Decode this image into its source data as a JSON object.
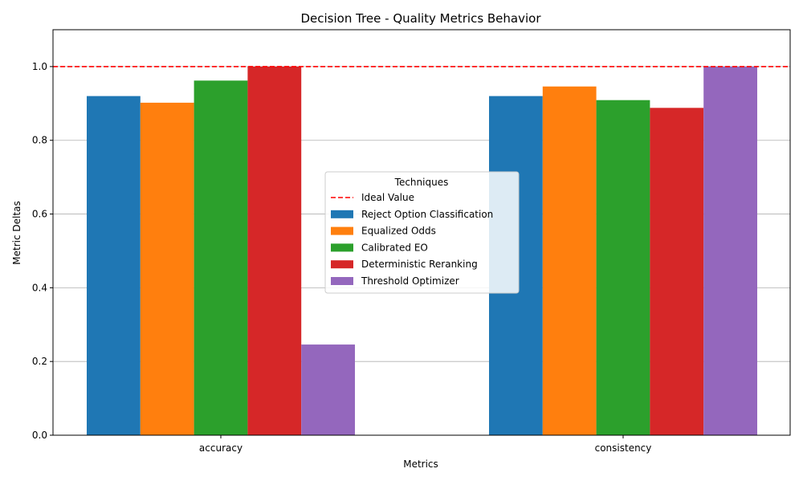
{
  "chart_data": {
    "type": "bar",
    "title": "Decision Tree - Quality Metrics Behavior",
    "xlabel": "Metrics",
    "ylabel": "Metric Deltas",
    "categories": [
      "accuracy",
      "consistency"
    ],
    "series": [
      {
        "name": "Reject Option Classification",
        "color": "#1f77b4",
        "values": [
          0.92,
          0.92
        ]
      },
      {
        "name": "Equalized Odds",
        "color": "#ff7f0e",
        "values": [
          0.902,
          0.946
        ]
      },
      {
        "name": "Calibrated EO",
        "color": "#2ca02c",
        "values": [
          0.962,
          0.909
        ]
      },
      {
        "name": "Deterministic Reranking",
        "color": "#d62728",
        "values": [
          1.0,
          0.888
        ]
      },
      {
        "name": "Threshold Optimizer",
        "color": "#9467bd",
        "values": [
          0.246,
          1.0
        ]
      }
    ],
    "ylim": [
      0,
      1.1
    ],
    "yticks": [
      0.0,
      0.2,
      0.4,
      0.6,
      0.8,
      1.0
    ],
    "ytick_labels": [
      "0.0",
      "0.2",
      "0.4",
      "0.6",
      "0.8",
      "1.0"
    ],
    "grid": "y",
    "reference_line": {
      "label": "Ideal Value",
      "value": 1.0,
      "color": "#ff0000",
      "style": "dashed"
    },
    "legend": {
      "title": "Techniques",
      "placement": "center"
    }
  }
}
